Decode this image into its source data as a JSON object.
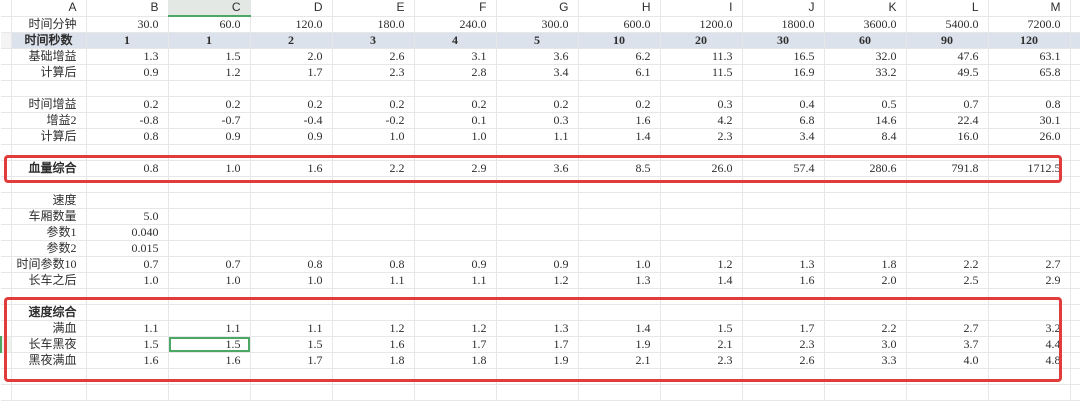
{
  "sheet": {
    "column_letters": [
      "A",
      "B",
      "C",
      "D",
      "E",
      "F",
      "G",
      "H",
      "I",
      "J",
      "K",
      "L",
      "M"
    ],
    "selected_column": "C",
    "selected_cell": {
      "column": "C",
      "row_label": "长车黑夜",
      "value": "1.5",
      "row_index": 20,
      "value_index": 1,
      "border_color": "#4ea865"
    },
    "rows": [
      {
        "label": "时间分钟",
        "type": "normal",
        "values": [
          "30.0",
          "60.0",
          "120.0",
          "180.0",
          "240.0",
          "300.0",
          "600.0",
          "1200.0",
          "1800.0",
          "3600.0",
          "5400.0",
          "7200.0"
        ]
      },
      {
        "label": "时间秒数",
        "type": "band",
        "values": [
          "1",
          "1",
          "2",
          "3",
          "4",
          "5",
          "10",
          "20",
          "30",
          "60",
          "90",
          "120"
        ]
      },
      {
        "label": "基础增益",
        "type": "normal",
        "values": [
          "1.3",
          "1.5",
          "2.0",
          "2.6",
          "3.1",
          "3.6",
          "6.2",
          "11.3",
          "16.5",
          "32.0",
          "47.6",
          "63.1"
        ]
      },
      {
        "label": "计算后",
        "type": "normal",
        "values": [
          "0.9",
          "1.2",
          "1.7",
          "2.3",
          "2.8",
          "3.4",
          "6.1",
          "11.5",
          "16.9",
          "33.2",
          "49.5",
          "65.8"
        ]
      },
      {
        "label": "",
        "type": "empty",
        "values": []
      },
      {
        "label": "时间增益",
        "type": "normal",
        "values": [
          "0.2",
          "0.2",
          "0.2",
          "0.2",
          "0.2",
          "0.2",
          "0.2",
          "0.3",
          "0.4",
          "0.5",
          "0.7",
          "0.8"
        ]
      },
      {
        "label": "增益2",
        "type": "normal",
        "values": [
          "-0.8",
          "-0.7",
          "-0.4",
          "-0.2",
          "0.1",
          "0.3",
          "1.6",
          "4.2",
          "6.8",
          "14.6",
          "22.4",
          "30.1"
        ]
      },
      {
        "label": "计算后",
        "type": "normal",
        "values": [
          "0.8",
          "0.9",
          "0.9",
          "1.0",
          "1.0",
          "1.1",
          "1.4",
          "2.3",
          "3.4",
          "8.4",
          "16.0",
          "26.0"
        ]
      },
      {
        "label": "",
        "type": "empty",
        "values": []
      },
      {
        "label": "血量综合",
        "type": "boldlabel",
        "values": [
          "0.8",
          "1.0",
          "1.6",
          "2.2",
          "2.9",
          "3.6",
          "8.5",
          "26.0",
          "57.4",
          "280.6",
          "791.8",
          "1712.5"
        ]
      },
      {
        "label": "",
        "type": "empty",
        "values": []
      },
      {
        "label": "速度",
        "type": "normal",
        "values": []
      },
      {
        "label": "车厢数量",
        "type": "normal",
        "values": [
          "5.0"
        ]
      },
      {
        "label": "参数1",
        "type": "normal",
        "values": [
          "0.040"
        ]
      },
      {
        "label": "参数2",
        "type": "normal",
        "values": [
          "0.015"
        ]
      },
      {
        "label": "时间参数10",
        "type": "normal",
        "values": [
          "0.7",
          "0.7",
          "0.8",
          "0.8",
          "0.9",
          "0.9",
          "1.0",
          "1.2",
          "1.3",
          "1.8",
          "2.2",
          "2.7"
        ]
      },
      {
        "label": "长车之后",
        "type": "normal",
        "values": [
          "1.0",
          "1.0",
          "1.0",
          "1.1",
          "1.1",
          "1.2",
          "1.3",
          "1.4",
          "1.6",
          "2.0",
          "2.5",
          "2.9"
        ]
      },
      {
        "label": "",
        "type": "empty",
        "values": []
      },
      {
        "label": "速度综合",
        "type": "boldlabel",
        "values": []
      },
      {
        "label": "满血",
        "type": "normal",
        "values": [
          "1.1",
          "1.1",
          "1.1",
          "1.2",
          "1.2",
          "1.3",
          "1.4",
          "1.5",
          "1.7",
          "2.2",
          "2.7",
          "3.2"
        ]
      },
      {
        "label": "长车黑夜",
        "type": "normal",
        "values": [
          "1.5",
          "1.5",
          "1.5",
          "1.6",
          "1.7",
          "1.7",
          "1.9",
          "2.1",
          "2.3",
          "3.0",
          "3.7",
          "4.4"
        ]
      },
      {
        "label": "黑夜满血",
        "type": "normal",
        "values": [
          "1.6",
          "1.6",
          "1.7",
          "1.8",
          "1.8",
          "1.9",
          "2.1",
          "2.3",
          "2.6",
          "3.3",
          "4.0",
          "4.8"
        ]
      },
      {
        "label": "",
        "type": "empty",
        "values": []
      },
      {
        "label": "",
        "type": "empty",
        "values": []
      }
    ],
    "red_highlight_boxes": [
      {
        "around_rows": [
          "血量综合"
        ]
      },
      {
        "around_rows": [
          "速度综合",
          "满血",
          "长车黑夜",
          "黑夜满血"
        ]
      }
    ]
  },
  "colors": {
    "accent_green": "#4ea865",
    "highlight_red": "#e03c3c",
    "band_row_bg": "#dce2ec",
    "header_bg": "#f3f4f3",
    "selected_header_bg": "#e4e8e4",
    "gridline": "#e5e7e9"
  }
}
